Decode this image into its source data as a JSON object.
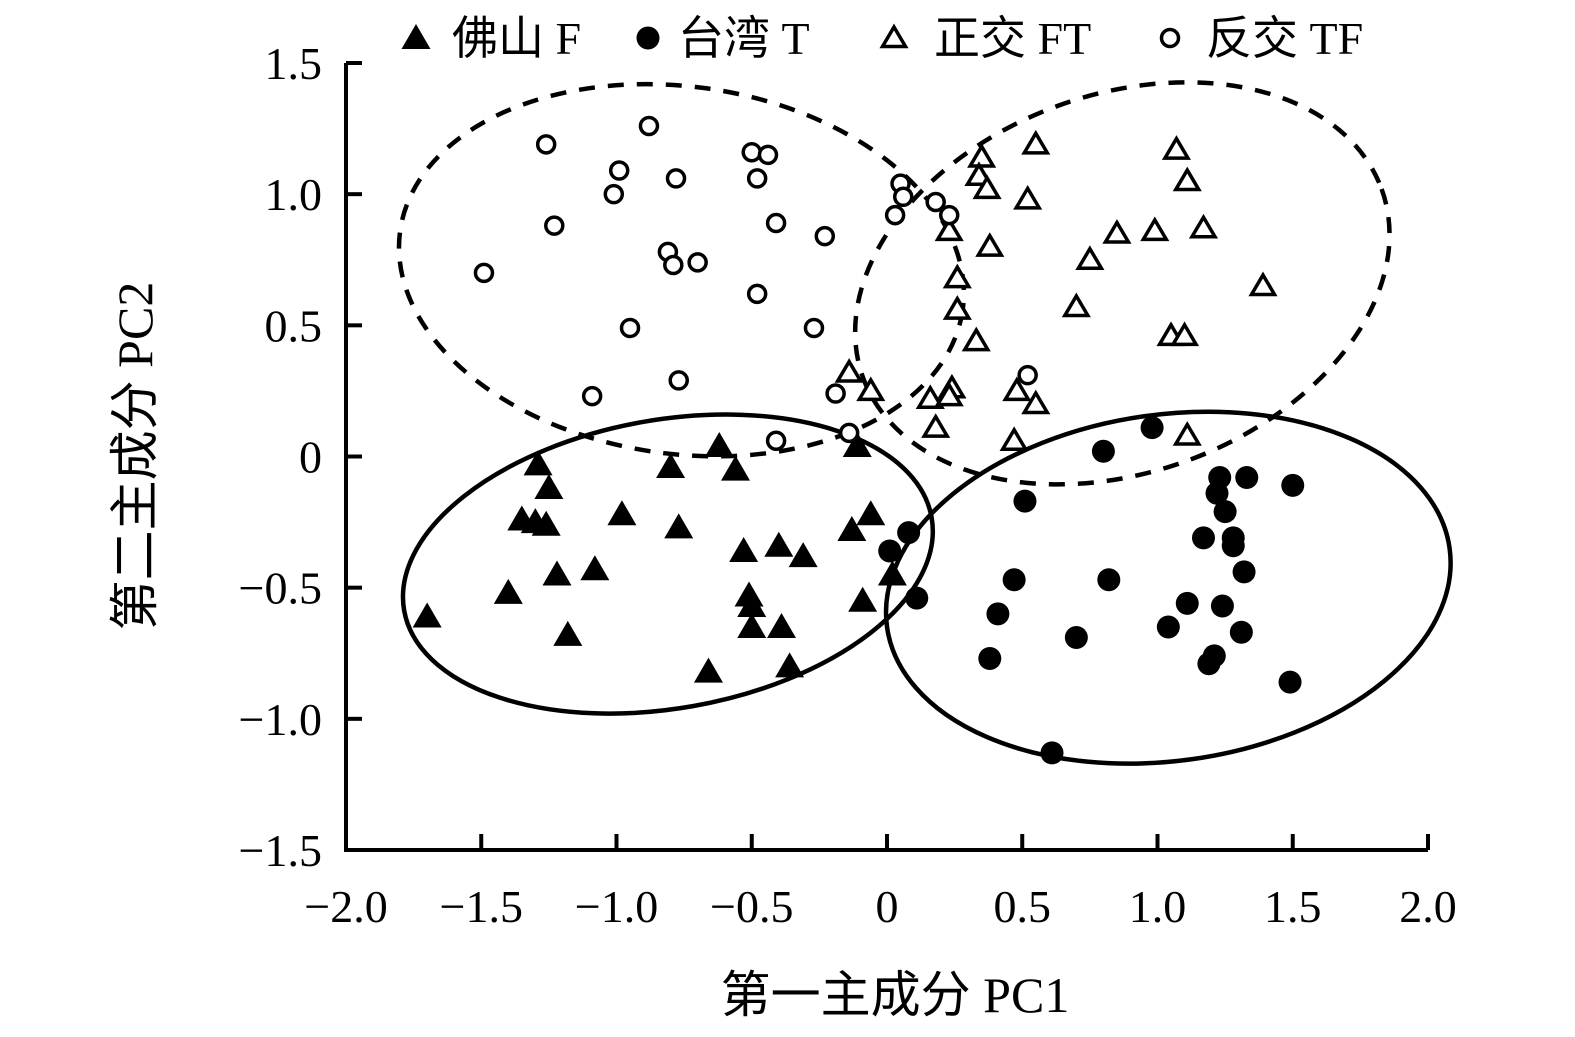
{
  "chart_data": {
    "type": "scatter",
    "title": "",
    "xlabel": "第一主成分 PC1",
    "ylabel": "第二主成分 PC2",
    "xlim": [
      -2.0,
      2.0
    ],
    "ylim": [
      -1.5,
      1.5
    ],
    "grid": false,
    "legend_position": "top",
    "background_color": "#ffffff",
    "ink_color": "#000000",
    "xticks": [
      -2.0,
      -1.5,
      -1.0,
      -0.5,
      0,
      0.5,
      1.0,
      1.5,
      2.0
    ],
    "xtick_labels": [
      "−2.0",
      "−1.5",
      "−1.0",
      "−0.5",
      "0",
      "0.5",
      "1.0",
      "1.5",
      "2.0"
    ],
    "yticks": [
      1.5,
      1.0,
      0.5,
      0,
      -0.5,
      -1.0,
      -1.5
    ],
    "ytick_labels": [
      "1.5",
      "1.0",
      "0.5",
      "0",
      "−0.5",
      "−1.0",
      "−1.5"
    ],
    "series": [
      {
        "name": "佛山 F",
        "marker": "triangle-filled",
        "points": [
          [
            -1.7,
            -0.61
          ],
          [
            -1.4,
            -0.52
          ],
          [
            -1.29,
            -0.03
          ],
          [
            -1.25,
            -0.12
          ],
          [
            -1.35,
            -0.24
          ],
          [
            -1.3,
            -0.25
          ],
          [
            -1.26,
            -0.26
          ],
          [
            -1.22,
            -0.45
          ],
          [
            -1.08,
            -0.43
          ],
          [
            -1.18,
            -0.68
          ],
          [
            -0.98,
            -0.22
          ],
          [
            -0.8,
            -0.04
          ],
          [
            -0.77,
            -0.27
          ],
          [
            -0.66,
            -0.82
          ],
          [
            -0.62,
            0.04
          ],
          [
            -0.56,
            -0.05
          ],
          [
            -0.53,
            -0.36
          ],
          [
            -0.4,
            -0.34
          ],
          [
            -0.51,
            -0.53
          ],
          [
            -0.5,
            -0.57
          ],
          [
            -0.5,
            -0.65
          ],
          [
            -0.39,
            -0.65
          ],
          [
            -0.36,
            -0.8
          ],
          [
            -0.31,
            -0.38
          ],
          [
            -0.13,
            -0.28
          ],
          [
            -0.06,
            -0.22
          ],
          [
            -0.11,
            0.04
          ],
          [
            -0.09,
            -0.55
          ],
          [
            0.02,
            -0.45
          ]
        ]
      },
      {
        "name": "台湾 T",
        "marker": "circle-filled",
        "points": [
          [
            0.98,
            0.11
          ],
          [
            0.8,
            0.02
          ],
          [
            0.51,
            -0.17
          ],
          [
            1.23,
            -0.08
          ],
          [
            1.33,
            -0.08
          ],
          [
            1.5,
            -0.11
          ],
          [
            1.22,
            -0.14
          ],
          [
            1.25,
            -0.21
          ],
          [
            1.17,
            -0.31
          ],
          [
            1.28,
            -0.31
          ],
          [
            1.28,
            -0.34
          ],
          [
            1.32,
            -0.44
          ],
          [
            1.11,
            -0.56
          ],
          [
            1.24,
            -0.57
          ],
          [
            1.04,
            -0.65
          ],
          [
            1.31,
            -0.67
          ],
          [
            1.21,
            -0.76
          ],
          [
            1.19,
            -0.79
          ],
          [
            1.49,
            -0.86
          ],
          [
            0.08,
            -0.29
          ],
          [
            0.01,
            -0.36
          ],
          [
            0.11,
            -0.54
          ],
          [
            0.47,
            -0.47
          ],
          [
            0.82,
            -0.47
          ],
          [
            0.41,
            -0.6
          ],
          [
            0.38,
            -0.77
          ],
          [
            0.7,
            -0.69
          ],
          [
            0.61,
            -1.13
          ]
        ]
      },
      {
        "name": "正交 FT",
        "marker": "triangle-open",
        "points": [
          [
            0.35,
            1.14
          ],
          [
            0.34,
            1.07
          ],
          [
            0.37,
            1.02
          ],
          [
            0.55,
            1.19
          ],
          [
            0.52,
            0.98
          ],
          [
            0.23,
            0.86
          ],
          [
            0.38,
            0.8
          ],
          [
            0.26,
            0.68
          ],
          [
            0.26,
            0.56
          ],
          [
            0.75,
            0.75
          ],
          [
            0.85,
            0.85
          ],
          [
            0.99,
            0.86
          ],
          [
            1.07,
            1.17
          ],
          [
            1.11,
            1.05
          ],
          [
            1.17,
            0.87
          ],
          [
            0.7,
            0.57
          ],
          [
            1.39,
            0.65
          ],
          [
            0.33,
            0.44
          ],
          [
            0.24,
            0.26
          ],
          [
            0.16,
            0.22
          ],
          [
            0.23,
            0.23
          ],
          [
            0.18,
            0.11
          ],
          [
            0.48,
            0.25
          ],
          [
            0.55,
            0.2
          ],
          [
            0.47,
            0.06
          ],
          [
            1.05,
            0.46
          ],
          [
            1.1,
            0.46
          ],
          [
            1.11,
            0.08
          ],
          [
            -0.14,
            0.32
          ],
          [
            -0.06,
            0.25
          ]
        ]
      },
      {
        "name": "反交 TF",
        "marker": "circle-open",
        "points": [
          [
            -1.26,
            1.19
          ],
          [
            -0.88,
            1.26
          ],
          [
            -0.99,
            1.09
          ],
          [
            -1.01,
            1.0
          ],
          [
            -0.78,
            1.06
          ],
          [
            -0.5,
            1.16
          ],
          [
            -0.44,
            1.15
          ],
          [
            -0.48,
            1.06
          ],
          [
            -1.23,
            0.88
          ],
          [
            -0.41,
            0.89
          ],
          [
            -0.23,
            0.84
          ],
          [
            -1.49,
            0.7
          ],
          [
            -0.81,
            0.78
          ],
          [
            -0.79,
            0.73
          ],
          [
            -0.7,
            0.74
          ],
          [
            -0.48,
            0.62
          ],
          [
            -0.95,
            0.49
          ],
          [
            -0.27,
            0.49
          ],
          [
            -0.77,
            0.29
          ],
          [
            -1.09,
            0.23
          ],
          [
            -0.19,
            0.24
          ],
          [
            -0.14,
            0.09
          ],
          [
            -0.41,
            0.06
          ],
          [
            0.05,
            1.04
          ],
          [
            0.06,
            0.99
          ],
          [
            0.03,
            0.92
          ],
          [
            0.18,
            0.97
          ],
          [
            0.23,
            0.92
          ],
          [
            0.52,
            0.31
          ]
        ]
      }
    ],
    "ellipses": [
      {
        "group": "反交 TF",
        "style": "dashed",
        "cx": -0.76,
        "cy": 0.71,
        "rx": 1.05,
        "ry": 0.7,
        "rotation_deg": -8
      },
      {
        "group": "正交 FT",
        "style": "dashed",
        "cx": 0.87,
        "cy": 0.66,
        "rx": 1.02,
        "ry": 0.72,
        "rotation_deg": 20
      },
      {
        "group": "佛山 F",
        "style": "solid",
        "cx": -0.81,
        "cy": -0.41,
        "rx": 0.99,
        "ry": 0.55,
        "rotation_deg": 10
      },
      {
        "group": "台湾 T",
        "style": "solid",
        "cx": 1.04,
        "cy": -0.5,
        "rx": 1.05,
        "ry": 0.66,
        "rotation_deg": 8
      }
    ]
  }
}
